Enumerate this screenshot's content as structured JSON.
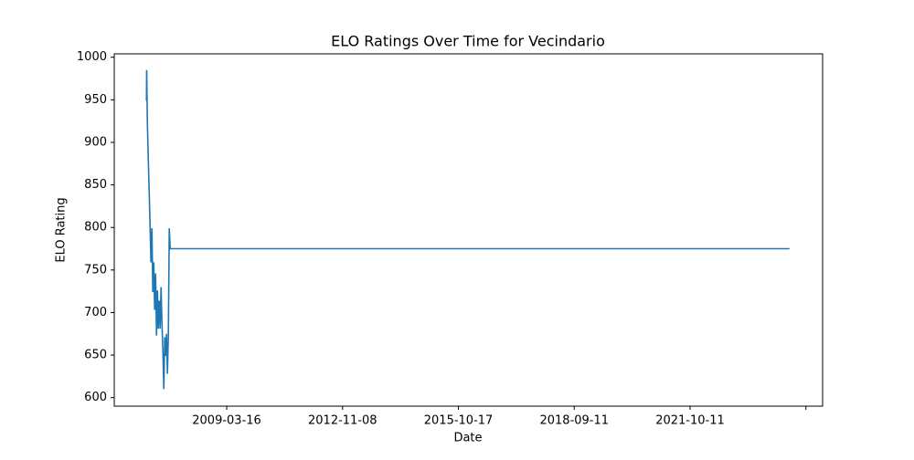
{
  "chart_data": {
    "type": "line",
    "title": "ELO Ratings Over Time for Vecindario",
    "xlabel": "Date",
    "ylabel": "ELO Rating",
    "x": [
      307,
      309,
      315,
      323,
      331,
      339,
      346,
      354,
      362,
      370,
      378,
      386,
      394,
      402,
      409,
      417,
      425,
      433,
      441,
      449,
      457,
      465,
      472,
      480,
      488,
      496,
      504,
      512,
      5858
    ],
    "series": [
      {
        "color": "#1f77b4",
        "values": [
          949,
          985,
          923,
          880,
          840,
          799,
          759,
          799,
          724,
          759,
          703,
          746,
          673,
          726,
          681,
          714,
          681,
          730,
          687,
          655,
          610,
          671,
          649,
          675,
          628,
          673,
          799,
          775,
          775
        ]
      }
    ],
    "xlim": [
      29,
      6144
    ],
    "xticks": [
      {
        "value": 1000,
        "label": "2009-03-16"
      },
      {
        "value": 2000,
        "label": "2012-11-08"
      },
      {
        "value": 3000,
        "label": "2015-10-17"
      },
      {
        "value": 4000,
        "label": "2018-09-11"
      },
      {
        "value": 5000,
        "label": "2021-10-11"
      },
      {
        "value": 6000,
        "label": null
      }
    ],
    "ylim": [
      590,
      1004
    ],
    "yticks": [
      600,
      650,
      700,
      750,
      800,
      850,
      900,
      950,
      1000
    ],
    "grid": false
  }
}
